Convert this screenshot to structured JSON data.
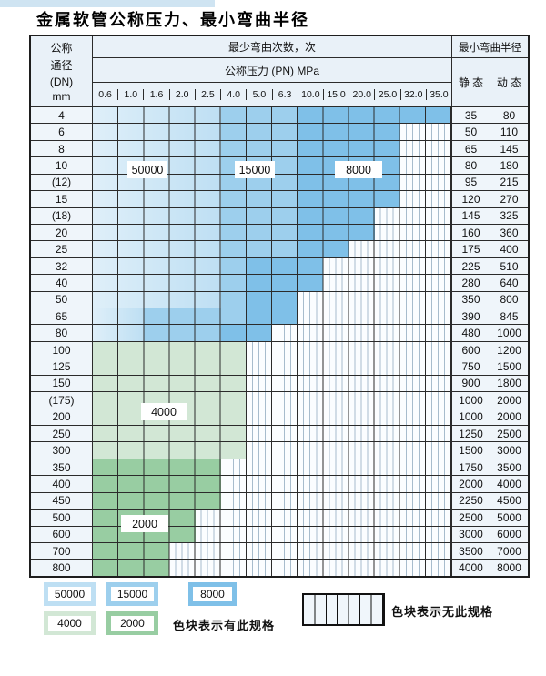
{
  "title": "金属软管公称压力、最小弯曲半径",
  "table": {
    "header": {
      "dn_lines": [
        "公称",
        "通径",
        "(DN)",
        "mm"
      ],
      "bend_cycles": "最少弯曲次数，次",
      "min_radius": "最小弯曲半径",
      "pressure": "公称压力 (PN) MPa",
      "pressures": [
        "0.6",
        "1.0",
        "1.6",
        "2.0",
        "2.5",
        "4.0",
        "5.0",
        "6.3",
        "10.0",
        "15.0",
        "20.0",
        "25.0",
        "32.0",
        "35.0"
      ],
      "static": "静 态",
      "dynamic": "动 态"
    },
    "rows": [
      {
        "dn": "4",
        "static": "35",
        "dynamic": "80",
        "zones": [
          [
            "b1",
            5
          ],
          [
            "b2",
            3
          ],
          [
            "b3",
            6
          ]
        ]
      },
      {
        "dn": "6",
        "static": "50",
        "dynamic": "110",
        "zones": [
          [
            "b1",
            5
          ],
          [
            "b2",
            3
          ],
          [
            "b3",
            4
          ]
        ]
      },
      {
        "dn": "8",
        "static": "65",
        "dynamic": "145",
        "zones": [
          [
            "b1",
            5
          ],
          [
            "b2",
            3
          ],
          [
            "b3",
            4
          ]
        ]
      },
      {
        "dn": "10",
        "static": "80",
        "dynamic": "180",
        "zones": [
          [
            "b1",
            5
          ],
          [
            "b2",
            3
          ],
          [
            "b3",
            4
          ]
        ]
      },
      {
        "dn": "(12)",
        "static": "95",
        "dynamic": "215",
        "zones": [
          [
            "b1",
            5
          ],
          [
            "b2",
            3
          ],
          [
            "b3",
            4
          ]
        ]
      },
      {
        "dn": "15",
        "static": "120",
        "dynamic": "270",
        "zones": [
          [
            "b1",
            5
          ],
          [
            "b2",
            3
          ],
          [
            "b3",
            4
          ]
        ]
      },
      {
        "dn": "(18)",
        "static": "145",
        "dynamic": "325",
        "zones": [
          [
            "b1",
            5
          ],
          [
            "b2",
            3
          ],
          [
            "b3",
            3
          ]
        ]
      },
      {
        "dn": "20",
        "static": "160",
        "dynamic": "360",
        "zones": [
          [
            "b1",
            5
          ],
          [
            "b2",
            3
          ],
          [
            "b3",
            3
          ]
        ]
      },
      {
        "dn": "25",
        "static": "175",
        "dynamic": "400",
        "zones": [
          [
            "b1",
            5
          ],
          [
            "b2",
            3
          ],
          [
            "b3",
            2
          ]
        ]
      },
      {
        "dn": "32",
        "static": "225",
        "dynamic": "510",
        "zones": [
          [
            "b1",
            5
          ],
          [
            "b2",
            1
          ],
          [
            "b3",
            3
          ]
        ]
      },
      {
        "dn": "40",
        "static": "280",
        "dynamic": "640",
        "zones": [
          [
            "b1",
            5
          ],
          [
            "b2",
            1
          ],
          [
            "b3",
            3
          ]
        ]
      },
      {
        "dn": "50",
        "static": "350",
        "dynamic": "800",
        "zones": [
          [
            "b1",
            5
          ],
          [
            "b2",
            1
          ],
          [
            "b3",
            2
          ]
        ]
      },
      {
        "dn": "65",
        "static": "390",
        "dynamic": "845",
        "zones": [
          [
            "b1",
            2
          ],
          [
            "b2",
            4
          ],
          [
            "b3",
            2
          ]
        ]
      },
      {
        "dn": "80",
        "static": "480",
        "dynamic": "1000",
        "zones": [
          [
            "b1",
            2
          ],
          [
            "b2",
            3
          ],
          [
            "b3",
            2
          ]
        ]
      },
      {
        "dn": "100",
        "static": "600",
        "dynamic": "1200",
        "zones": [
          [
            "g1",
            6
          ]
        ]
      },
      {
        "dn": "125",
        "static": "750",
        "dynamic": "1500",
        "zones": [
          [
            "g1",
            6
          ]
        ]
      },
      {
        "dn": "150",
        "static": "900",
        "dynamic": "1800",
        "zones": [
          [
            "g1",
            6
          ]
        ]
      },
      {
        "dn": "(175)",
        "static": "1000",
        "dynamic": "2000",
        "zones": [
          [
            "g1",
            6
          ]
        ]
      },
      {
        "dn": "200",
        "static": "1000",
        "dynamic": "2000",
        "zones": [
          [
            "g1",
            6
          ]
        ]
      },
      {
        "dn": "250",
        "static": "1250",
        "dynamic": "2500",
        "zones": [
          [
            "g1",
            6
          ]
        ]
      },
      {
        "dn": "300",
        "static": "1500",
        "dynamic": "3000",
        "zones": [
          [
            "g1",
            6
          ]
        ]
      },
      {
        "dn": "350",
        "static": "1750",
        "dynamic": "3500",
        "zones": [
          [
            "g2",
            5
          ]
        ]
      },
      {
        "dn": "400",
        "static": "2000",
        "dynamic": "4000",
        "zones": [
          [
            "g2",
            5
          ]
        ]
      },
      {
        "dn": "450",
        "static": "2250",
        "dynamic": "4500",
        "zones": [
          [
            "g2",
            5
          ]
        ]
      },
      {
        "dn": "500",
        "static": "2500",
        "dynamic": "5000",
        "zones": [
          [
            "g2",
            4
          ]
        ]
      },
      {
        "dn": "600",
        "static": "3000",
        "dynamic": "6000",
        "zones": [
          [
            "g2",
            4
          ]
        ]
      },
      {
        "dn": "700",
        "static": "3500",
        "dynamic": "7000",
        "zones": [
          [
            "g2",
            3
          ]
        ]
      },
      {
        "dn": "800",
        "static": "4000",
        "dynamic": "8000",
        "zones": [
          [
            "g2",
            3
          ]
        ]
      }
    ],
    "overlays": [
      "50000",
      "15000",
      "8000",
      "4000",
      "2000"
    ]
  },
  "legend": {
    "has_items": [
      {
        "label": "50000",
        "color": "b1"
      },
      {
        "label": "15000",
        "color": "b2"
      },
      {
        "label": "8000",
        "color": "b3"
      },
      {
        "label": "4000",
        "color": "g1"
      },
      {
        "label": "2000",
        "color": "g2"
      }
    ],
    "has_text": "色块表示有此规格",
    "none_text": "色块表示无此规格"
  },
  "colors": {
    "b1": "#bedff3",
    "b2": "#9dcfed",
    "b3": "#7fc0e8",
    "g1": "#d2e7d5",
    "g2": "#98cda2"
  }
}
